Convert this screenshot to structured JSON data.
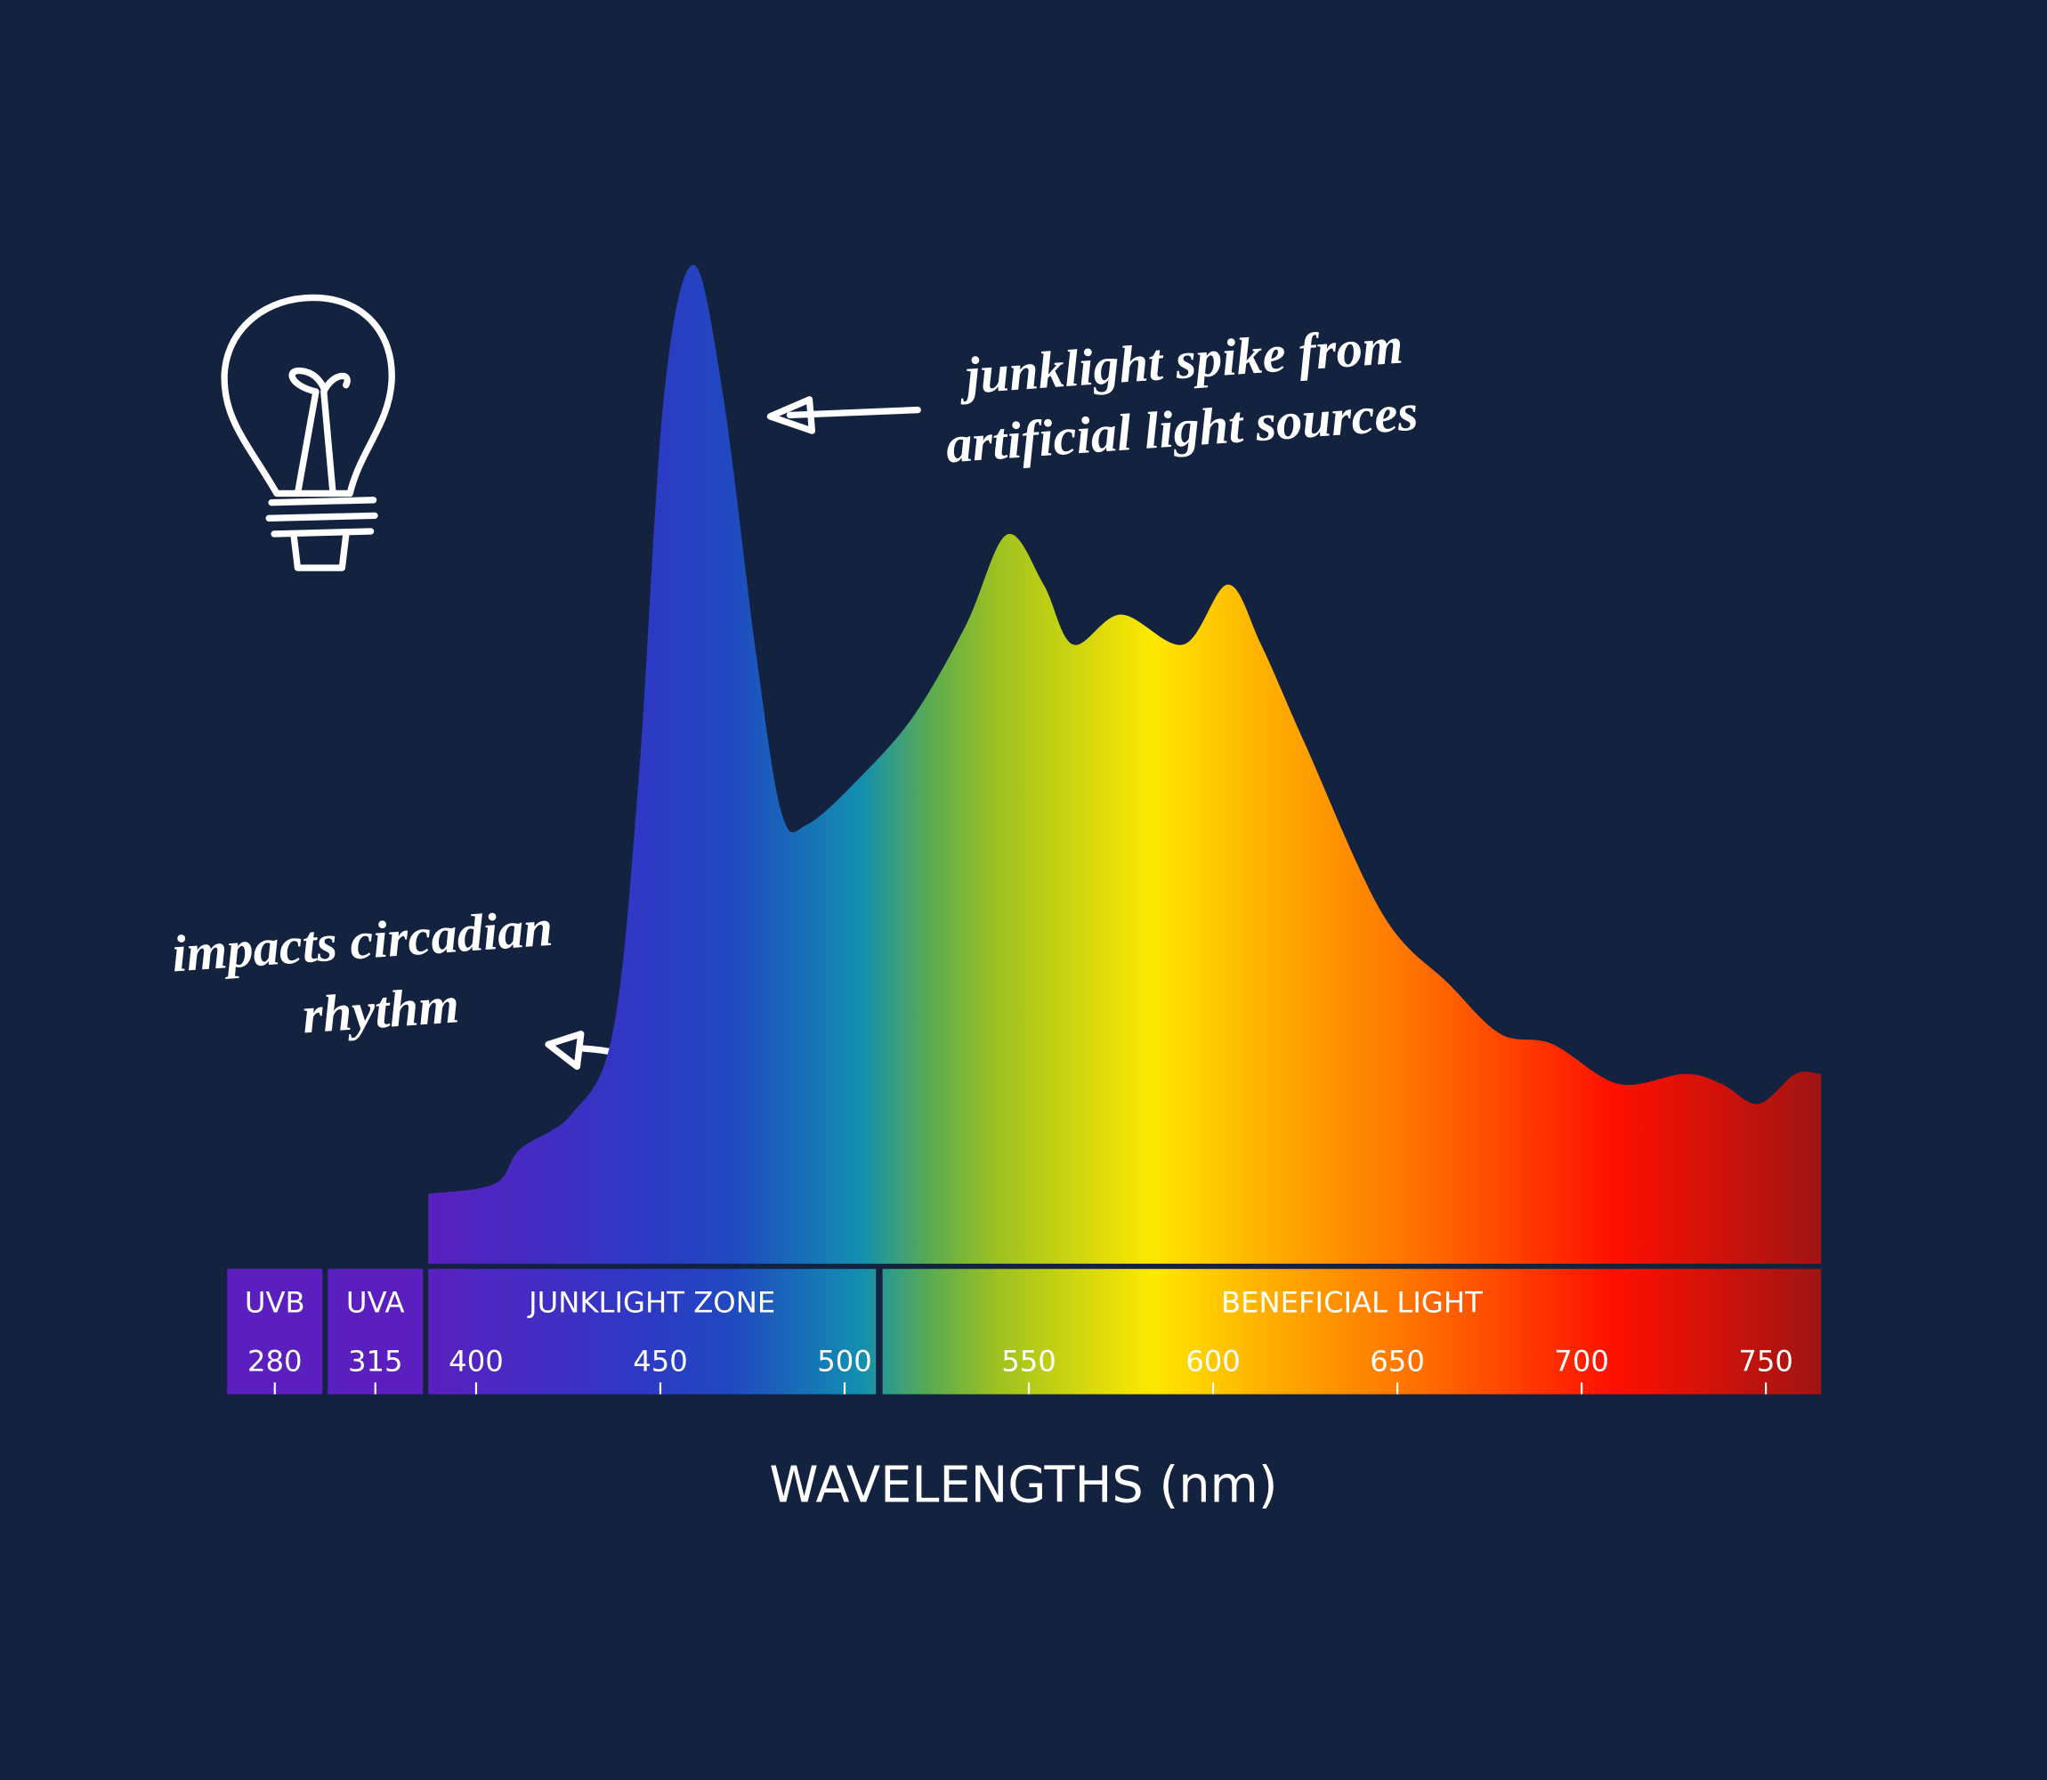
{
  "chart_data": {
    "type": "area",
    "x_label": "WAVELENGTHS (nm)",
    "annotations": [
      {
        "lines": [
          "junklight spike from",
          "artificial light sources"
        ]
      },
      {
        "lines": [
          "impacts circadian",
          "rhythm"
        ]
      }
    ],
    "x": [
      387,
      405,
      412,
      426,
      437,
      444,
      451,
      459,
      467,
      476,
      483,
      490,
      505,
      519,
      533,
      544,
      554,
      562,
      575,
      592,
      604,
      613,
      625,
      646,
      664,
      678,
      692,
      710,
      728,
      738,
      748,
      758,
      765
    ],
    "values": [
      7,
      8,
      11.5,
      15,
      23,
      48,
      87,
      100,
      87,
      61,
      45,
      44,
      49,
      55,
      64,
      73,
      68,
      62,
      65,
      62,
      68,
      62,
      52,
      35,
      28,
      23,
      22,
      18,
      19,
      18,
      16,
      19,
      19
    ],
    "xlim": [
      387,
      765
    ],
    "ylim": [
      0,
      100
    ],
    "bands": [
      {
        "label": "UVB",
        "ticks": [
          280
        ]
      },
      {
        "label": "UVA",
        "ticks": [
          315
        ]
      },
      {
        "label": "JUNKLIGHT ZONE",
        "ticks": [
          400,
          450,
          500
        ]
      },
      {
        "label": "BENEFICIAL LIGHT",
        "ticks": [
          550,
          600,
          650,
          700,
          750
        ]
      }
    ]
  }
}
